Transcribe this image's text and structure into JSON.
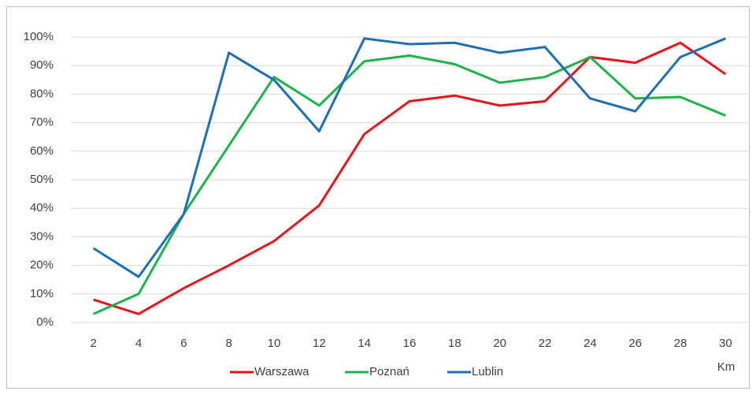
{
  "chart_data": {
    "type": "line",
    "x_label": "Km",
    "categories": [
      2,
      4,
      6,
      8,
      10,
      12,
      14,
      16,
      18,
      20,
      22,
      24,
      26,
      28,
      30
    ],
    "series": [
      {
        "name": "Warszawa",
        "color": "#e8131b",
        "values": [
          8,
          3,
          12,
          20,
          28.5,
          41,
          66,
          77.5,
          79.5,
          76,
          77.5,
          93,
          91,
          98,
          87
        ]
      },
      {
        "name": "Poznań",
        "color": "#1db34a",
        "values": [
          3,
          10,
          38,
          62,
          86,
          76,
          91.5,
          93.5,
          90.5,
          84,
          86,
          93,
          78.5,
          79,
          72.5
        ]
      },
      {
        "name": "Lublin",
        "color": "#1f6fb5",
        "values": [
          26,
          16,
          38,
          94.5,
          85,
          67,
          99.5,
          97.5,
          98,
          94.5,
          96.5,
          78.5,
          74,
          93,
          99.5
        ]
      }
    ],
    "ylim": [
      0,
      100
    ],
    "yticks": [
      {
        "value": 0,
        "label": "0%"
      },
      {
        "value": 10,
        "label": "10%"
      },
      {
        "value": 20,
        "label": "20%"
      },
      {
        "value": 30,
        "label": "30%"
      },
      {
        "value": 40,
        "label": "40%"
      },
      {
        "value": 50,
        "label": "50%"
      },
      {
        "value": 60,
        "label": "60%"
      },
      {
        "value": 70,
        "label": "70%"
      },
      {
        "value": 80,
        "label": "80%"
      },
      {
        "value": 90,
        "label": "90%"
      },
      {
        "value": 100,
        "label": "100%"
      }
    ],
    "grid": true,
    "legend": "bottom"
  }
}
